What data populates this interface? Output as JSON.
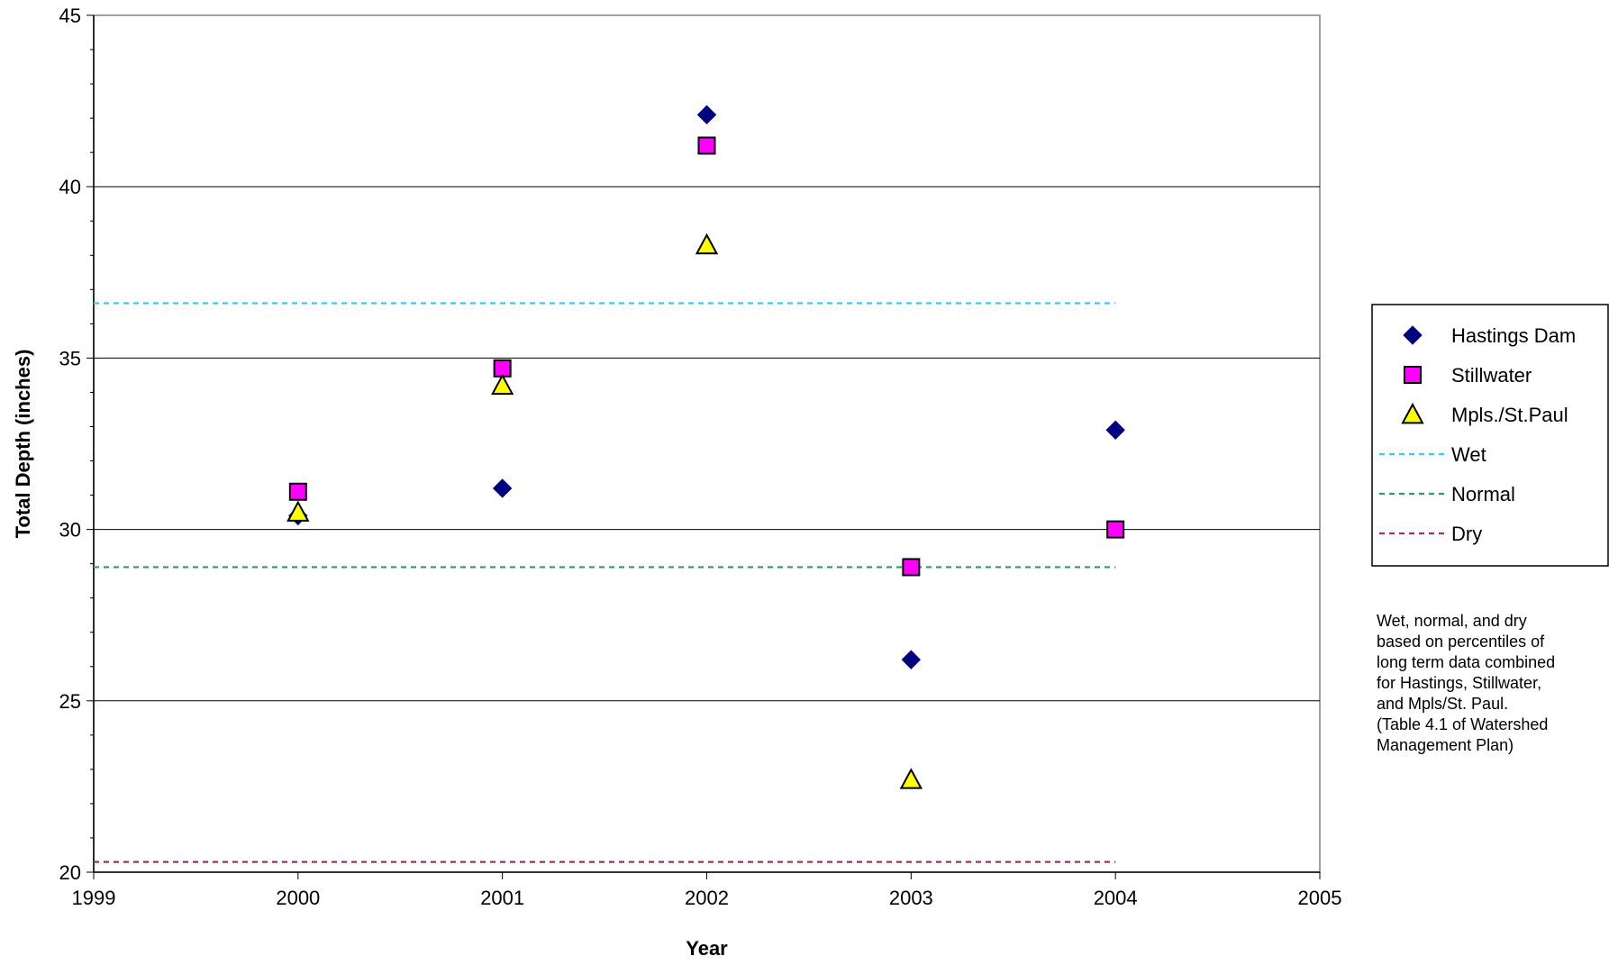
{
  "chart_data": {
    "type": "scatter",
    "title": "",
    "xlabel": "Year",
    "ylabel": "Total Depth (inches)",
    "xlim": [
      1999,
      2005
    ],
    "ylim": [
      20,
      45
    ],
    "x_ticks": [
      1999,
      2000,
      2001,
      2002,
      2003,
      2004,
      2005
    ],
    "y_ticks": [
      20,
      25,
      30,
      35,
      40,
      45
    ],
    "grid": "horizontal major gridlines",
    "legend_position": "right",
    "series": [
      {
        "name": "Hastings Dam",
        "marker": "diamond",
        "color": "#000080",
        "points": [
          {
            "x": 2000,
            "y": 30.4
          },
          {
            "x": 2001,
            "y": 31.2
          },
          {
            "x": 2002,
            "y": 42.1
          },
          {
            "x": 2003,
            "y": 26.2
          },
          {
            "x": 2004,
            "y": 32.9
          }
        ]
      },
      {
        "name": "Stillwater",
        "marker": "square",
        "color": "#FF00FF",
        "points": [
          {
            "x": 2000,
            "y": 31.1
          },
          {
            "x": 2001,
            "y": 34.7
          },
          {
            "x": 2002,
            "y": 41.2
          },
          {
            "x": 2003,
            "y": 28.9
          },
          {
            "x": 2004,
            "y": 30.0
          }
        ]
      },
      {
        "name": "Mpls./St.Paul",
        "marker": "triangle",
        "color": "#FFFF00",
        "points": [
          {
            "x": 2000,
            "y": 30.5
          },
          {
            "x": 2001,
            "y": 34.2
          },
          {
            "x": 2002,
            "y": 38.3
          },
          {
            "x": 2003,
            "y": 22.7
          }
        ]
      }
    ],
    "reference_lines": [
      {
        "name": "Wet",
        "y": 36.6,
        "x_start": 1999,
        "x_end": 2004,
        "color": "#33CCFF",
        "style": "dashed"
      },
      {
        "name": "Normal",
        "y": 28.9,
        "x_start": 1999,
        "x_end": 2004,
        "color": "#339966",
        "style": "dashed"
      },
      {
        "name": "Dry",
        "y": 20.3,
        "x_start": 1999,
        "x_end": 2004,
        "color": "#993366",
        "style": "dashed"
      }
    ],
    "note_lines": [
      "Wet, normal, and dry",
      "based on percentiles of",
      "long term data combined",
      "for Hastings, Stillwater,",
      "and Mpls/St. Paul.",
      "(Table 4.1 of Watershed",
      "Management Plan)"
    ]
  }
}
